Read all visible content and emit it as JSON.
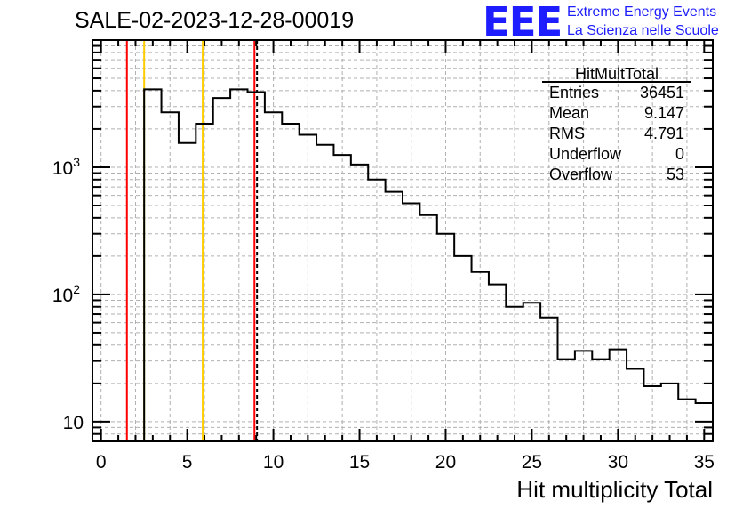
{
  "title": "SALE-02-2023-12-28-00019",
  "logo": {
    "mark": "EEE",
    "line1": "Extreme Energy Events",
    "line2": "La Scienza nelle Scuole",
    "color": "#1d1dff"
  },
  "stats_box": {
    "name": "HitMultTotal",
    "rows": [
      {
        "label": "Entries",
        "value": "36451"
      },
      {
        "label": "Mean",
        "value": "9.147"
      },
      {
        "label": "RMS",
        "value": "4.791"
      },
      {
        "label": "Underflow",
        "value": "0"
      },
      {
        "label": "Overflow",
        "value": "53"
      }
    ]
  },
  "chart_data": {
    "type": "histogram",
    "xlabel": "Hit multiplicity Total",
    "ylabel": "",
    "xlim": [
      -0.5,
      35.5
    ],
    "ylim": [
      7,
      10000
    ],
    "yscale": "log",
    "grid": true,
    "x_ticks": [
      "0",
      "5",
      "10",
      "15",
      "20",
      "25",
      "30",
      "35"
    ],
    "y_ticks": [
      {
        "base": "10",
        "exp": ""
      },
      {
        "base": "10",
        "exp": "2"
      },
      {
        "base": "10",
        "exp": "3"
      }
    ],
    "bin_width": 1,
    "bin_start": -0.5,
    "values": [
      0,
      0,
      0,
      4100,
      2700,
      1550,
      2200,
      3500,
      4100,
      3900,
      2700,
      2200,
      1800,
      1500,
      1250,
      1050,
      800,
      640,
      520,
      420,
      300,
      200,
      150,
      120,
      80,
      86,
      66,
      31,
      36,
      31,
      37,
      26,
      19,
      20,
      15,
      14
    ],
    "series_color": "#000000",
    "vertical_lines": [
      {
        "x": 1.5,
        "color": "#ff0000",
        "style": "solid"
      },
      {
        "x": 2.5,
        "color": "#ffcc00",
        "style": "solid"
      },
      {
        "x": 5.9,
        "color": "#ffcc00",
        "style": "solid"
      },
      {
        "x": 8.9,
        "color": "#ff0000",
        "style": "solid"
      },
      {
        "x": 9.05,
        "color": "#000000",
        "style": "dashed"
      }
    ]
  }
}
